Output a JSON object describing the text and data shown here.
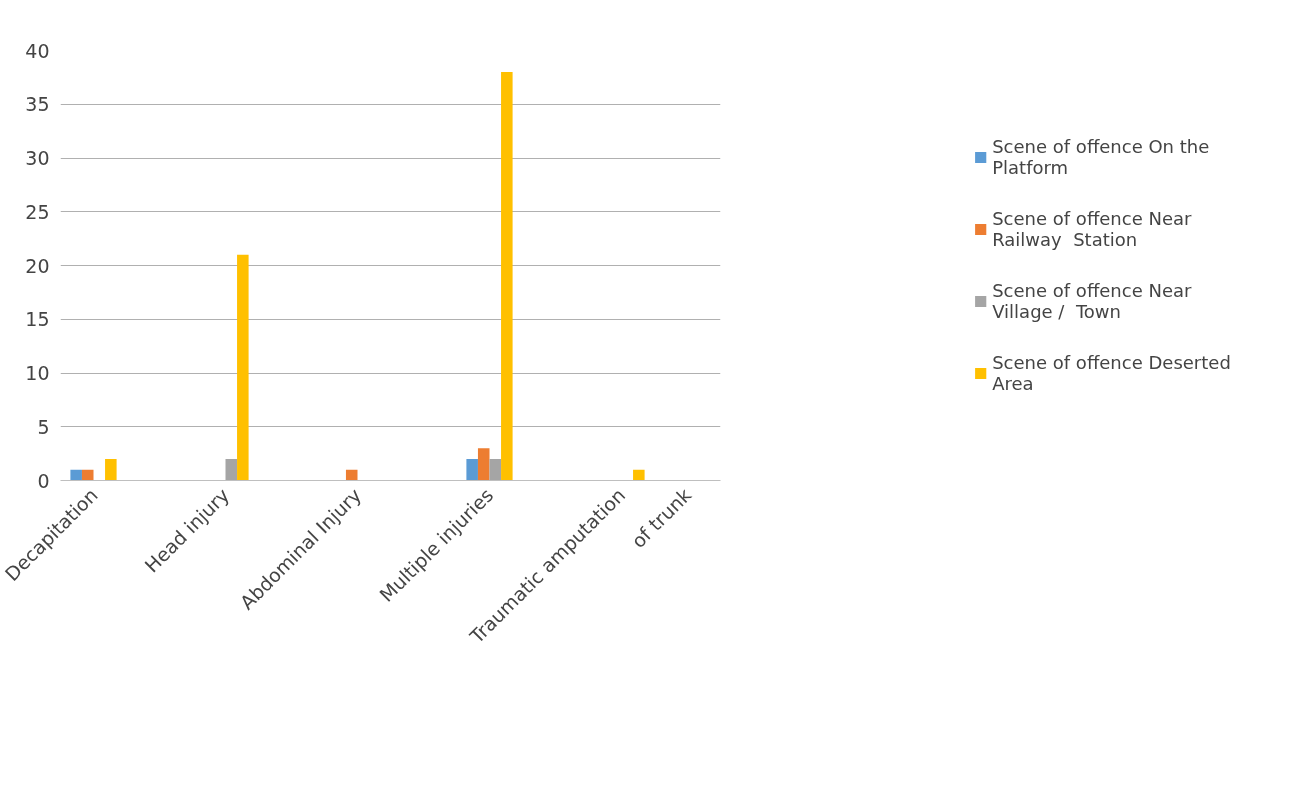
{
  "chart_data": {
    "type": "bar",
    "categories": [
      "Decapitation",
      null,
      "Head injury",
      null,
      "Abdominal Injury",
      null,
      "Multiple injuries",
      null,
      "Traumatic amputation",
      "of trunk"
    ],
    "series": [
      {
        "name": "Scene of offence On the Platform",
        "color": "#5b9bd5",
        "values": [
          1,
          0,
          0,
          0,
          0,
          0,
          2,
          0,
          0,
          0
        ]
      },
      {
        "name": "Scene of offence Near Railway  Station",
        "color": "#ed7d31",
        "values": [
          1,
          0,
          0,
          0,
          1,
          0,
          3,
          0,
          0,
          0
        ]
      },
      {
        "name": "Scene of offence Near Village /  Town",
        "color": "#a5a5a5",
        "values": [
          0,
          0,
          2,
          0,
          0,
          0,
          2,
          0,
          0,
          0
        ]
      },
      {
        "name": "Scene of offence Deserted Area",
        "color": "#ffc000",
        "values": [
          2,
          0,
          21,
          0,
          0,
          0,
          38,
          0,
          1,
          0
        ]
      }
    ],
    "ylim": [
      0,
      40
    ],
    "yticks": [
      0,
      5,
      10,
      15,
      20,
      25,
      30,
      35,
      40
    ],
    "grid": "y",
    "legend": "right"
  }
}
